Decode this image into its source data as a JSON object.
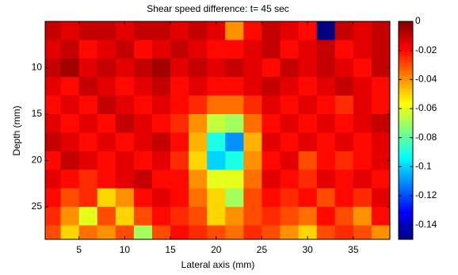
{
  "chart_data": {
    "type": "heatmap",
    "title": "Shear speed difference: t= 45 sec",
    "x_label": "Lateral axis (mm)",
    "y_label": "Depth (mm)",
    "x": [
      2,
      4,
      6,
      8,
      10,
      12,
      14,
      16,
      18,
      20,
      22,
      24,
      26,
      28,
      30,
      32,
      34,
      36,
      38
    ],
    "y": [
      6,
      8,
      10,
      12,
      14,
      16,
      18,
      20,
      22,
      24,
      26,
      28
    ],
    "z": [
      [
        -0.01,
        -0.015,
        -0.01,
        -0.01,
        -0.015,
        -0.01,
        -0.01,
        -0.015,
        -0.01,
        -0.015,
        -0.04,
        -0.02,
        -0.01,
        -0.015,
        -0.02,
        -0.15,
        -0.01,
        -0.015,
        -0.01
      ],
      [
        -0.015,
        -0.01,
        -0.02,
        -0.015,
        -0.01,
        -0.02,
        -0.015,
        -0.01,
        -0.015,
        -0.02,
        -0.02,
        -0.015,
        -0.01,
        -0.02,
        -0.015,
        -0.01,
        -0.02,
        -0.015,
        -0.01
      ],
      [
        -0.01,
        -0.005,
        -0.015,
        -0.01,
        -0.015,
        -0.01,
        -0.005,
        -0.015,
        -0.01,
        -0.015,
        -0.01,
        -0.015,
        -0.02,
        -0.01,
        -0.015,
        -0.01,
        -0.015,
        -0.02,
        -0.01
      ],
      [
        -0.015,
        -0.02,
        -0.01,
        -0.015,
        -0.02,
        -0.015,
        -0.01,
        -0.02,
        -0.015,
        -0.02,
        -0.02,
        -0.015,
        -0.01,
        -0.015,
        -0.02,
        -0.015,
        -0.01,
        -0.015,
        -0.02
      ],
      [
        -0.02,
        -0.015,
        -0.02,
        -0.01,
        -0.015,
        -0.02,
        -0.015,
        -0.02,
        -0.025,
        -0.035,
        -0.035,
        -0.025,
        -0.015,
        -0.02,
        -0.015,
        -0.02,
        -0.025,
        -0.015,
        -0.02
      ],
      [
        -0.015,
        -0.02,
        -0.015,
        -0.02,
        -0.01,
        -0.015,
        -0.02,
        -0.025,
        -0.04,
        -0.065,
        -0.07,
        -0.035,
        -0.02,
        -0.015,
        -0.02,
        -0.015,
        -0.02,
        -0.015,
        -0.01
      ],
      [
        -0.01,
        -0.015,
        -0.02,
        -0.015,
        -0.02,
        -0.015,
        -0.01,
        -0.02,
        -0.045,
        -0.09,
        -0.11,
        -0.045,
        -0.015,
        -0.02,
        -0.015,
        -0.02,
        -0.015,
        -0.02,
        -0.015
      ],
      [
        -0.02,
        -0.01,
        -0.015,
        -0.02,
        -0.015,
        -0.02,
        -0.015,
        -0.025,
        -0.05,
        -0.1,
        -0.09,
        -0.04,
        -0.02,
        -0.015,
        -0.03,
        -0.02,
        -0.025,
        -0.02,
        -0.015
      ],
      [
        -0.015,
        -0.02,
        -0.025,
        -0.02,
        -0.015,
        -0.01,
        -0.02,
        -0.02,
        -0.04,
        -0.06,
        -0.06,
        -0.035,
        -0.015,
        -0.02,
        -0.025,
        -0.015,
        -0.02,
        -0.015,
        -0.02
      ],
      [
        -0.02,
        -0.03,
        -0.025,
        -0.05,
        -0.04,
        -0.02,
        -0.015,
        -0.02,
        -0.035,
        -0.05,
        -0.07,
        -0.03,
        -0.02,
        -0.025,
        -0.02,
        -0.03,
        -0.02,
        -0.025,
        -0.015
      ],
      [
        -0.025,
        -0.04,
        -0.06,
        -0.03,
        -0.05,
        -0.03,
        -0.02,
        -0.025,
        -0.03,
        -0.05,
        -0.04,
        -0.03,
        -0.025,
        -0.03,
        -0.035,
        -0.02,
        -0.03,
        -0.04,
        -0.02
      ],
      [
        -0.03,
        -0.05,
        -0.035,
        -0.04,
        -0.03,
        -0.07,
        -0.03,
        -0.02,
        -0.025,
        -0.03,
        -0.035,
        -0.025,
        -0.03,
        -0.04,
        -0.05,
        -0.03,
        -0.025,
        -0.03,
        -0.04
      ]
    ],
    "xlim": [
      1.3,
      39
    ],
    "ylim": [
      5,
      28.5
    ],
    "xticks": [
      5,
      10,
      15,
      20,
      25,
      30,
      35
    ],
    "yticks": [
      10,
      15,
      20,
      25
    ],
    "clim": [
      -0.15,
      0
    ],
    "cticks": [
      0,
      -0.02,
      -0.04,
      -0.06,
      -0.08,
      -0.1,
      -0.12,
      -0.14
    ],
    "colormap": "jet"
  }
}
